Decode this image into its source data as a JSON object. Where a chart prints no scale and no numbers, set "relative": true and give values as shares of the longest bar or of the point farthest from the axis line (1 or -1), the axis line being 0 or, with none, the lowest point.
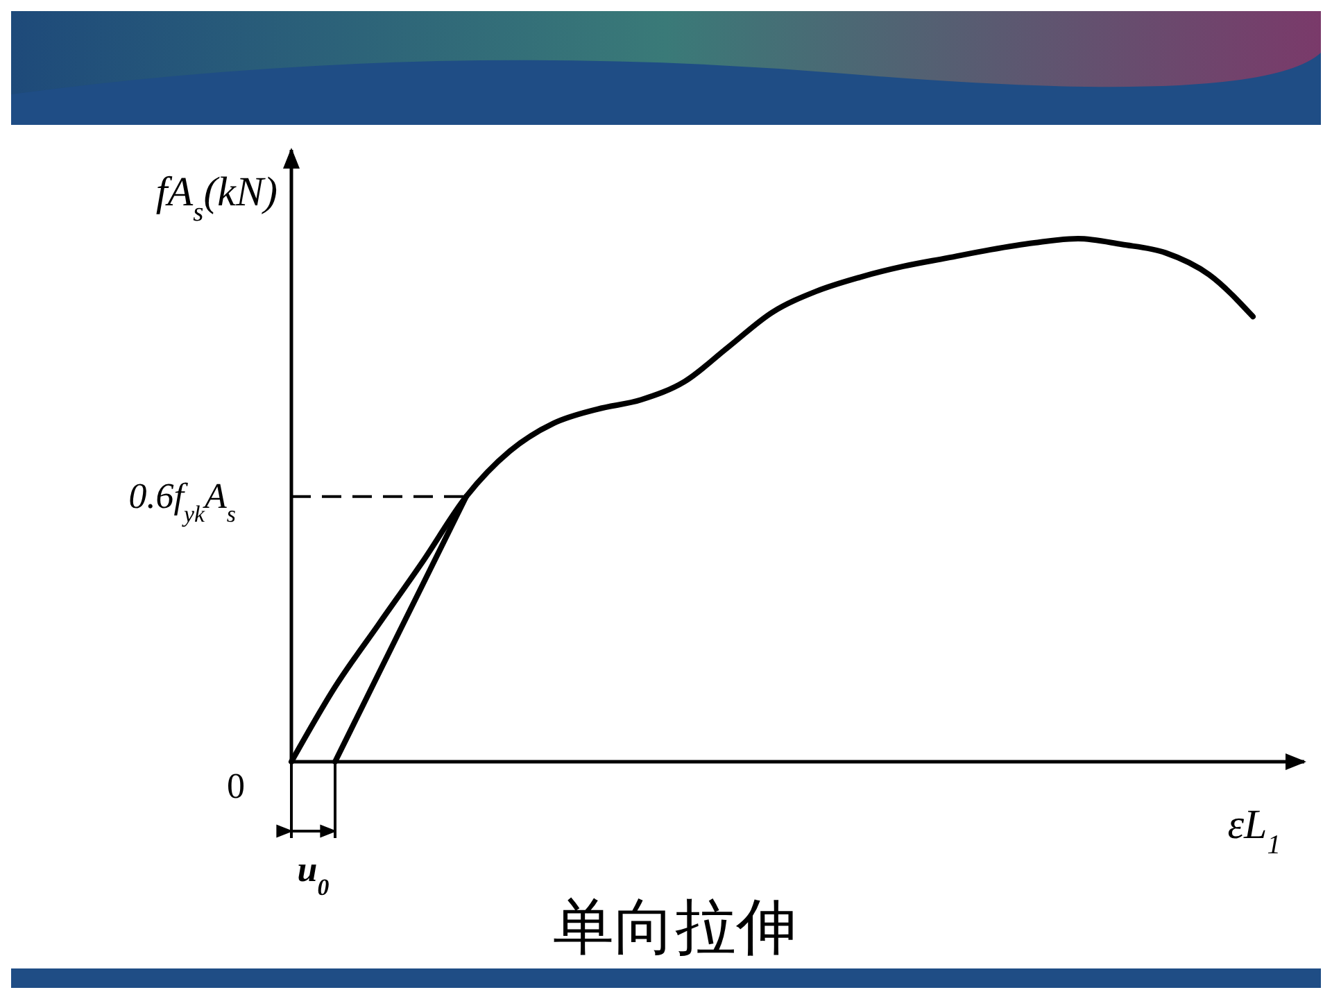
{
  "chart_data": {
    "type": "line",
    "title": "单向拉伸",
    "xlabel": "εL$_{1}$",
    "ylabel": "fA$_{s}$(kN)",
    "relative": true,
    "categories": [
      null,
      null,
      null,
      null,
      null,
      null,
      null,
      null,
      null,
      null,
      null,
      null,
      null,
      null,
      null,
      null,
      null,
      null,
      null,
      null,
      null,
      null,
      null
    ],
    "series": [
      {
        "color": "#000000",
        "values": [
          0,
          0.143,
          0.263,
          0.382,
          0.507,
          0.594,
          0.647,
          0.674,
          0.692,
          0.727,
          0.793,
          0.859,
          0.899,
          0.926,
          0.947,
          0.963,
          0.979,
          0.992,
          1,
          0.989,
          0.973,
          0.931,
          0.851
        ]
      },
      {
        "color": "#000000",
        "values": [
          null,
          0,
          0.169,
          0.338,
          0.507,
          null,
          null,
          null,
          null,
          null,
          null,
          null,
          null,
          null,
          null,
          null,
          null,
          null,
          null,
          null,
          null,
          null,
          null
        ]
      }
    ],
    "ref_lines": [
      {
        "axis": "y",
        "value": 0.507,
        "label": "0.6f$_{yk}$A$_{s}$",
        "line_style": "dashed",
        "color": "#000000"
      }
    ],
    "annotations": [
      "0",
      "u$_{0}$"
    ]
  }
}
